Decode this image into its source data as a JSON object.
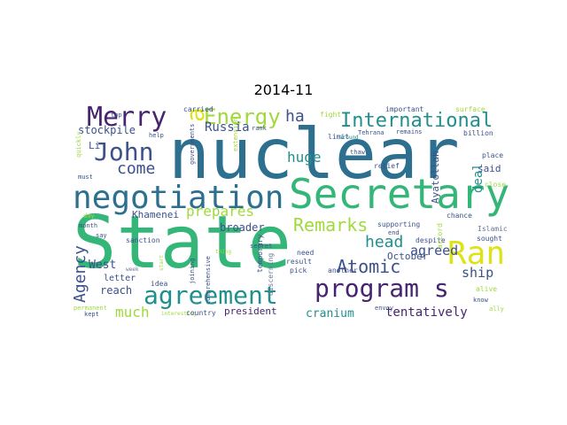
{
  "title": "2014-11",
  "palette": {
    "purple": "#46246f",
    "indigo": "#3b518b",
    "blue": "#2d6f8e",
    "teal": "#218f8d",
    "green": "#34b679",
    "lime": "#9fda3a",
    "yellow": "#dde318",
    "gray": "#6b7794"
  },
  "words": [
    "nuclear",
    "State",
    "Secretary",
    "negotiation",
    "agreement",
    "program s",
    "Ran",
    "Merry",
    "John",
    "Energy",
    "International",
    "Atomic",
    "Agency",
    "Remarks",
    "head",
    "agreed",
    "ship",
    "prepares",
    "come",
    "huge",
    "ha",
    "a",
    "stockpile",
    "Russia",
    "tentatively",
    "much",
    "reach",
    "West",
    "broader",
    "cranium",
    "president",
    "October",
    "deal",
    "Ayatollah",
    "Khamenei",
    "letter",
    "Li",
    "said",
    "Islamic",
    "sought",
    "alive",
    "know",
    "ally",
    "close",
    "place",
    "billion",
    "surface",
    "important",
    "fight",
    "carried",
    "rank",
    "limit",
    "thaw",
    "relief",
    "need",
    "result",
    "pick",
    "another",
    "envoy",
    "supporting",
    "end",
    "despite",
    "chance",
    "sanction",
    "idea",
    "month",
    "day",
    "say",
    "kept",
    "permanent",
    "interesting",
    "country",
    "comprehensive",
    "joining",
    "discerning",
    "temporary",
    "secret",
    "thing",
    "start",
    "week",
    "quickly",
    "must",
    "top",
    "help",
    "governments",
    "extension",
    "around",
    "Tehrana",
    "remains",
    "accord"
  ]
}
